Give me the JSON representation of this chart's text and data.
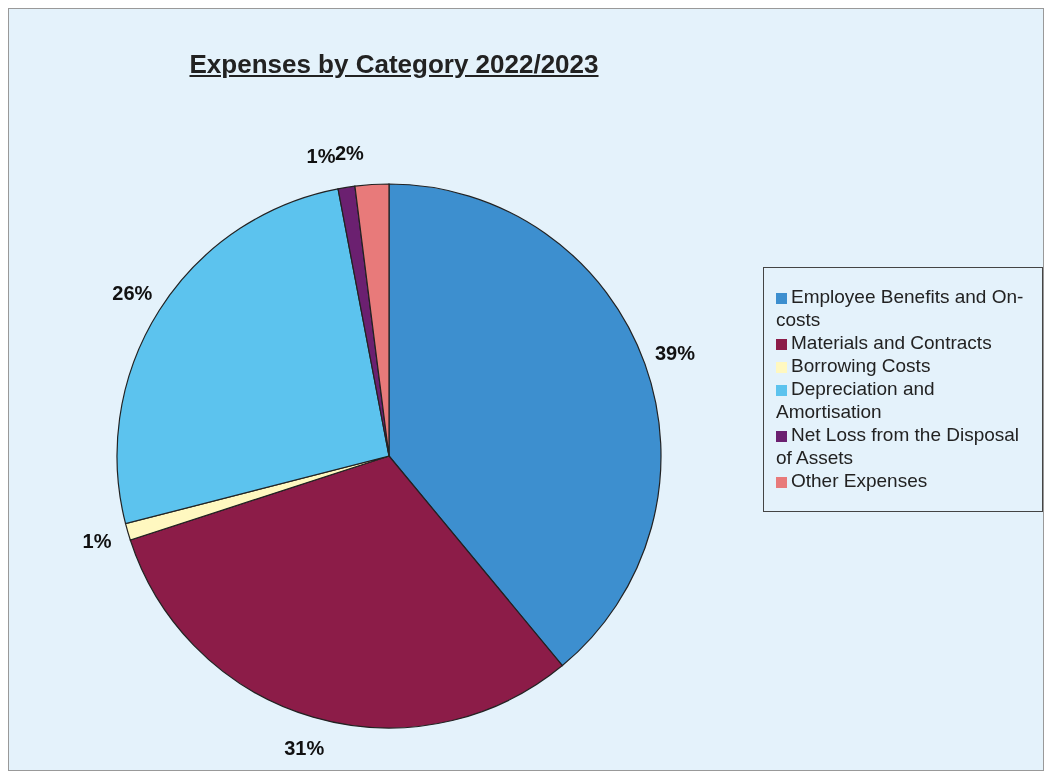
{
  "chart_data": {
    "type": "pie",
    "title": "Expenses by Category 2022/2023",
    "categories": [
      "Employee Benefits and On-costs",
      "Materials and Contracts",
      "Borrowing Costs",
      "Depreciation and Amortisation",
      "Net Loss from the Disposal of Assets",
      "Other Expenses"
    ],
    "values": [
      39,
      31,
      1,
      26,
      1,
      2
    ],
    "value_labels": [
      "39%",
      "31%",
      "1%",
      "26%",
      "1%",
      "2%"
    ],
    "colors": [
      "#3d8fcf",
      "#8c1c48",
      "#fff8c0",
      "#5cc3ee",
      "#6b2070",
      "#e87a7a"
    ],
    "legend": "right"
  }
}
